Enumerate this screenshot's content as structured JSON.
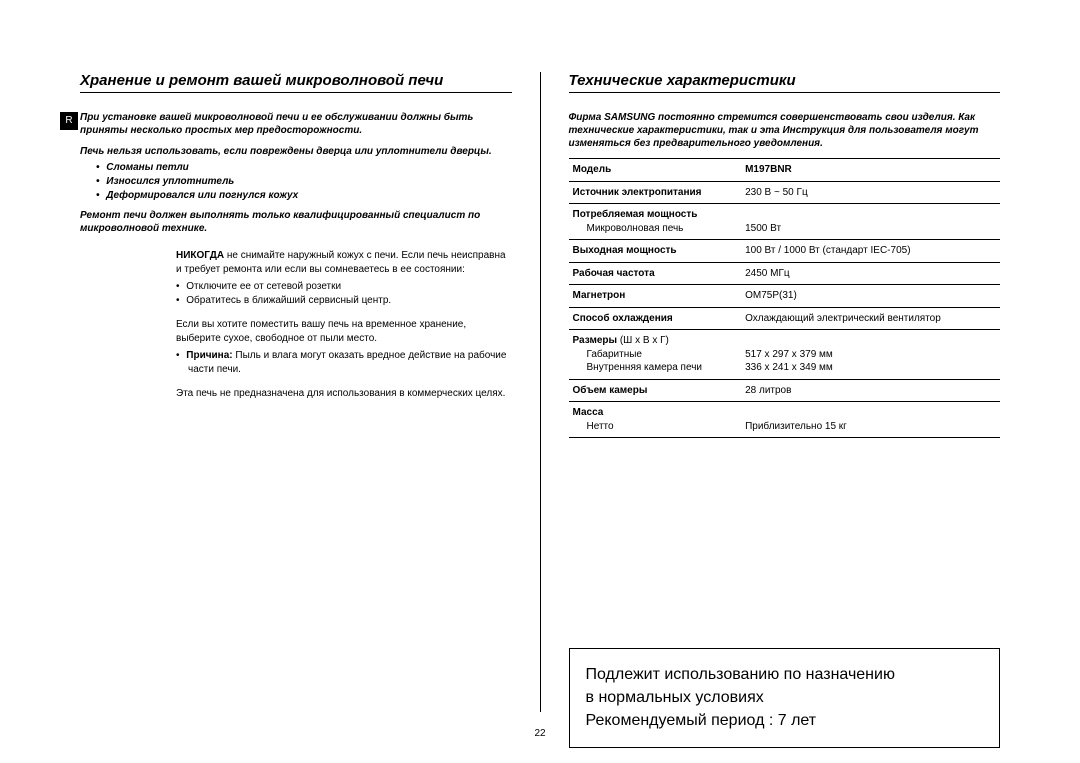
{
  "r_badge": "R",
  "left": {
    "title": "Хранение и ремонт вашей микроволновой печи",
    "intro": "При установке вашей микроволновой печи и ее обслуживании должны быть приняты несколько простых мер предосторожности.",
    "warn": "Печь нельзя использовать, если повреждены дверца или уплотнители дверцы.",
    "bullets": [
      "Сломаны петли",
      "Износился уплотнитель",
      "Деформировался или погнулся кожух"
    ],
    "repair": "Ремонт печи должен выполнять только квалифицированный специалист по микроволновой технике.",
    "never_label": "НИКОГДА",
    "never_text": " не снимайте наружный кожух с печи. Если печь неисправна и требует ремонта или если вы сомневаетесь в ее состоянии:",
    "never_bullets": [
      "Отключите ее от сетевой розетки",
      "Обратитесь в ближайший сервисный центр."
    ],
    "storage": "Если вы хотите поместить вашу печь на временное хранение, выберите сухое, свободное от пыли место.",
    "reason_label": "Причина:",
    "reason_text": " Пыль и влага могут оказать вредное действие на рабочие части печи.",
    "commercial": "Эта печь не предназначена для использования в коммерческих целях."
  },
  "right": {
    "title": "Технические характеристики",
    "intro": "Фирма SAMSUNG постоянно стремится совершенствовать свои изделия. Как технические характеристики, так и эта Инструкция для пользователя могут изменяться без предварительного уведомления.",
    "rows": [
      {
        "label": "Модель",
        "sub": null,
        "value": "M197BNR",
        "bold": true
      },
      {
        "label": "Источник электропитания",
        "sub": null,
        "value": "230 В ~ 50 Гц",
        "bold": false
      },
      {
        "label": "Потребляемая мощность",
        "sub": "Микроволновая печь",
        "value": "1500 Вт",
        "bold": false,
        "value_pad": true
      },
      {
        "label": "Выходная мощность",
        "sub": null,
        "value": "100 Вт / 1000 Вт (стандарт IEC-705)",
        "bold": false
      },
      {
        "label": "Рабочая частота",
        "sub": null,
        "value": "2450 МГц",
        "bold": false
      },
      {
        "label": "Магнетрон",
        "sub": null,
        "value": "OM75P(31)",
        "bold": false
      },
      {
        "label": "Способ охлаждения",
        "sub": null,
        "value": "Охлаждающий электрический вентилятор",
        "bold": false
      },
      {
        "label": "Размеры",
        "label_extra": " (Ш x В x Г)",
        "sub2": [
          "Габаритные",
          "Внутренняя камера печи"
        ],
        "value2": [
          "517 x 297 x 379 мм",
          "336 x 241 x 349 мм"
        ],
        "multi": true
      },
      {
        "label": "Объем камеры",
        "sub": null,
        "value": "28 литров",
        "bold": false
      },
      {
        "label": "Масса",
        "sub": "Нетто",
        "value": "Приблизительно 15 кг",
        "bold": false,
        "value_pad": true
      }
    ],
    "notice": [
      "Подлежит использованию по назначению",
      "в нормальных условиях",
      "Рекомендуемый период : 7 лет"
    ]
  },
  "page_number": "22"
}
